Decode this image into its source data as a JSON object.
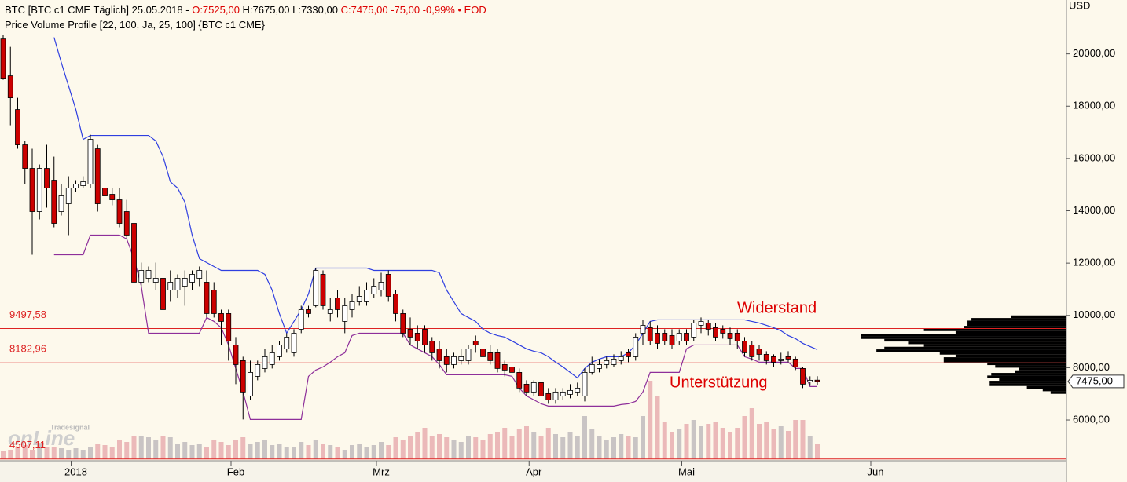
{
  "chart_data": {
    "type": "candlestick",
    "header": [
      {
        "text": "BTC [BTC c1 CME Täglich] 25.05.2018 - ",
        "color": "#000000"
      },
      {
        "text": "O:7525,00 ",
        "color": "#dd0000"
      },
      {
        "text": "H:7675,00 L:7330,00 ",
        "color": "#000000"
      },
      {
        "text": "C:7475,00 -75,00 -0,99% • EOD",
        "color": "#dd0000"
      }
    ],
    "subtitle": "Price Volume Profile [22, 100, Ja, 25, 100] {BTC c1 CME}",
    "y_unit": "USD",
    "categories": [
      null,
      null,
      null,
      null,
      null,
      null,
      null,
      null,
      null,
      null,
      "2018",
      null,
      null,
      null,
      null,
      null,
      null,
      null,
      null,
      null,
      null,
      null,
      null,
      null,
      null,
      null,
      null,
      null,
      null,
      null,
      null,
      null,
      "Feb",
      null,
      null,
      null,
      null,
      null,
      null,
      null,
      null,
      null,
      null,
      null,
      null,
      null,
      null,
      null,
      null,
      null,
      null,
      null,
      "Mrz",
      null,
      null,
      null,
      null,
      null,
      null,
      null,
      null,
      null,
      null,
      null,
      null,
      null,
      null,
      null,
      null,
      null,
      null,
      null,
      null,
      "Apr",
      null,
      null,
      null,
      null,
      null,
      null,
      null,
      null,
      null,
      null,
      null,
      null,
      null,
      null,
      null,
      null,
      null,
      null,
      null,
      null,
      "Mai",
      null,
      null,
      null,
      null,
      null,
      null,
      null,
      null,
      null,
      null,
      null,
      null,
      null,
      null,
      null,
      null,
      null,
      null,
      null,
      null,
      null,
      null,
      null,
      null,
      null,
      "Jun"
    ],
    "open": [
      20570,
      19160,
      17870,
      16520,
      15620,
      13970,
      15620,
      15170,
      13970,
      14270,
      14870,
      14960,
      15020,
      16370,
      14870,
      14630,
      14420,
      13970,
      13520,
      11270,
      11420,
      11270,
      11420,
      10970,
      10970,
      11120,
      11270,
      11420,
      11270,
      10970,
      10070,
      10070,
      8870,
      8270,
      6920,
      7670,
      7970,
      8120,
      8420,
      8720,
      8570,
      9470,
      10220,
      10370,
      11570,
      10070,
      10670,
      9770,
      10220,
      10520,
      10520,
      10820,
      10970,
      11570,
      10820,
      10070,
      9470,
      9320,
      9470,
      9020,
      8720,
      8420,
      8120,
      8270,
      8270,
      9020,
      8720,
      8570,
      8570,
      8120,
      8030,
      7820,
      7370,
      7070,
      7430,
      7010,
      6770,
      6920,
      6980,
      7070,
      6920,
      7820,
      7970,
      8120,
      8120,
      8270,
      8570,
      8420,
      9320,
      9530,
      9320,
      9320,
      9230,
      9020,
      9320,
      9170,
      9620,
      9710,
      9530,
      9470,
      9320,
      9320,
      9020,
      8870,
      8720,
      8510,
      8420,
      8270,
      8420,
      8330,
      7970,
      7460,
      7525,
      null,
      null,
      null,
      null,
      null,
      null,
      null,
      null
    ],
    "high": [
      20720,
      20270,
      18320,
      16670,
      16370,
      15770,
      16520,
      16070,
      15020,
      15320,
      15170,
      15320,
      16910,
      16520,
      15620,
      14870,
      14870,
      14420,
      14120,
      12020,
      11870,
      12020,
      11870,
      11720,
      11570,
      11720,
      11720,
      11870,
      11720,
      11270,
      10220,
      10220,
      9170,
      8420,
      8270,
      8270,
      8720,
      8870,
      9020,
      9320,
      9470,
      10370,
      10370,
      11810,
      11720,
      10670,
      10970,
      10670,
      10820,
      11120,
      11270,
      11420,
      11630,
      11720,
      10970,
      10220,
      9920,
      9620,
      9620,
      9170,
      9020,
      8720,
      8570,
      8720,
      8870,
      9230,
      8870,
      8870,
      8720,
      8270,
      8210,
      7970,
      7520,
      7520,
      7520,
      7220,
      7220,
      7220,
      7370,
      7430,
      7970,
      8420,
      8330,
      8420,
      8510,
      8630,
      8720,
      9320,
      9830,
      9770,
      9620,
      9470,
      9470,
      9470,
      9470,
      9830,
      9920,
      9830,
      9710,
      9620,
      9530,
      9470,
      9170,
      9020,
      8870,
      8630,
      8510,
      8570,
      8630,
      8420,
      8030,
      7670,
      7675,
      null,
      null,
      null,
      null,
      null,
      null,
      null,
      null
    ],
    "low": [
      19010,
      17270,
      16370,
      15020,
      12320,
      13670,
      14120,
      13370,
      13820,
      13070,
      14720,
      14870,
      14870,
      13970,
      14120,
      14210,
      13370,
      12920,
      11120,
      11120,
      11270,
      10970,
      9920,
      10520,
      10670,
      10370,
      10970,
      11120,
      9920,
      9920,
      8870,
      8270,
      7370,
      6020,
      6770,
      7520,
      7820,
      7970,
      8270,
      8570,
      8420,
      9320,
      9920,
      10310,
      10220,
      9770,
      9920,
      9320,
      9920,
      10370,
      10370,
      10670,
      10730,
      10520,
      9770,
      9170,
      8870,
      8720,
      8570,
      8270,
      7970,
      7820,
      7970,
      8120,
      8120,
      8570,
      8270,
      8120,
      7820,
      7670,
      7670,
      7070,
      6920,
      6920,
      6770,
      6620,
      6620,
      6770,
      6830,
      6920,
      6710,
      7730,
      7820,
      7970,
      8030,
      8120,
      8210,
      8270,
      8870,
      8870,
      8720,
      8870,
      8720,
      8870,
      8870,
      9020,
      9320,
      9230,
      9020,
      9110,
      8870,
      8720,
      8420,
      8270,
      8270,
      8120,
      8030,
      8120,
      8210,
      7910,
      7220,
      7310,
      7330,
      null,
      null,
      null,
      null,
      null,
      null,
      null,
      null
    ],
    "close": [
      19070,
      18320,
      16520,
      15620,
      13970,
      15620,
      14870,
      13520,
      14570,
      14870,
      15020,
      15110,
      16730,
      14270,
      14570,
      14420,
      13520,
      13070,
      11270,
      11720,
      11720,
      11420,
      10220,
      11270,
      11420,
      11420,
      11570,
      11720,
      10070,
      10070,
      9770,
      9020,
      8120,
      7070,
      7820,
      8120,
      8420,
      8570,
      8870,
      9170,
      9320,
      10220,
      10070,
      11720,
      10370,
      10220,
      10220,
      10370,
      10520,
      10730,
      10970,
      11120,
      11270,
      10730,
      10070,
      9320,
      9170,
      9020,
      8870,
      8570,
      8270,
      8120,
      8420,
      8420,
      8720,
      8870,
      8420,
      8270,
      7970,
      7910,
      7820,
      7220,
      7070,
      7430,
      6920,
      6770,
      7070,
      7070,
      7130,
      7220,
      7820,
      8120,
      8120,
      8270,
      8330,
      8420,
      8420,
      9170,
      9620,
      9020,
      8930,
      9020,
      8870,
      9320,
      9020,
      9710,
      9770,
      9470,
      9170,
      9320,
      9110,
      9020,
      8570,
      8420,
      8510,
      8270,
      8210,
      8330,
      8330,
      8030,
      7370,
      7520,
      7475,
      null,
      null,
      null,
      null,
      null,
      null,
      null,
      null
    ],
    "up_color": "#ffffff",
    "down_color": "#cc0000",
    "series": [
      {
        "color": "#2f3fe0",
        "values": [
          null,
          null,
          null,
          null,
          null,
          null,
          null,
          20630,
          19670,
          18770,
          17870,
          16730,
          16880,
          16880,
          16880,
          16880,
          16880,
          16880,
          16880,
          16880,
          16880,
          16670,
          16070,
          15110,
          14870,
          14330,
          13070,
          12170,
          12020,
          11870,
          11720,
          11720,
          11720,
          11720,
          11720,
          11720,
          11570,
          10970,
          10070,
          9320,
          9770,
          10220,
          10820,
          11810,
          11810,
          11810,
          11810,
          11810,
          11810,
          11810,
          11810,
          11720,
          11720,
          11720,
          11720,
          11720,
          11720,
          11720,
          11720,
          11720,
          11630,
          10970,
          10520,
          10070,
          9920,
          9770,
          9470,
          9320,
          9230,
          9170,
          9020,
          8870,
          8720,
          8630,
          8570,
          8420,
          8210,
          8030,
          7820,
          7610,
          7970,
          8210,
          8330,
          8420,
          8420,
          8420,
          8570,
          8870,
          9320,
          9770,
          9830,
          9830,
          9830,
          9830,
          9830,
          9830,
          9830,
          9830,
          9830,
          9830,
          9830,
          9830,
          9830,
          9770,
          9710,
          9620,
          9530,
          9410,
          9230,
          9110,
          8930,
          8810,
          8690,
          null,
          null,
          null,
          null,
          null,
          null,
          null,
          null
        ]
      },
      {
        "color": "#8e2f9a",
        "values": [
          null,
          null,
          null,
          null,
          null,
          null,
          null,
          12320,
          12320,
          12320,
          12320,
          12320,
          13070,
          13070,
          13070,
          13070,
          13070,
          12920,
          12170,
          11120,
          9320,
          9320,
          9320,
          9320,
          9320,
          9320,
          9320,
          9320,
          9920,
          9770,
          9530,
          8870,
          7970,
          7070,
          6020,
          6020,
          6020,
          6020,
          6020,
          6020,
          6020,
          6020,
          7670,
          7910,
          8030,
          8210,
          8420,
          8570,
          9230,
          9320,
          9320,
          9320,
          9320,
          9320,
          9320,
          9320,
          8870,
          8720,
          8570,
          8420,
          8120,
          7730,
          7730,
          7730,
          7730,
          7730,
          7730,
          7730,
          7730,
          7730,
          7670,
          7220,
          6920,
          6770,
          6620,
          6530,
          6530,
          6530,
          6530,
          6530,
          6530,
          6530,
          6530,
          6530,
          6530,
          6590,
          6620,
          6710,
          7070,
          7820,
          7820,
          7820,
          7820,
          7820,
          8720,
          8870,
          8870,
          8870,
          8870,
          8870,
          8870,
          8870,
          8420,
          8330,
          8210,
          8210,
          8210,
          8210,
          8210,
          7970,
          7970,
          7280,
          7280,
          null,
          null,
          null,
          null,
          null,
          null,
          null,
          null
        ]
      }
    ],
    "volume": [
      10,
      12,
      15,
      18,
      12,
      20,
      15,
      15,
      14,
      12,
      14,
      12,
      15,
      20,
      18,
      15,
      25,
      22,
      30,
      30,
      28,
      25,
      30,
      28,
      20,
      22,
      18,
      20,
      15,
      25,
      22,
      18,
      25,
      28,
      20,
      22,
      25,
      18,
      20,
      15,
      15,
      22,
      18,
      25,
      20,
      18,
      15,
      12,
      18,
      20,
      15,
      18,
      22,
      18,
      28,
      25,
      30,
      35,
      40,
      30,
      32,
      28,
      25,
      22,
      30,
      28,
      25,
      32,
      35,
      40,
      30,
      38,
      42,
      35,
      30,
      40,
      32,
      28,
      35,
      30,
      55,
      38,
      30,
      25,
      28,
      32,
      30,
      28,
      55,
      100,
      80,
      48,
      35,
      38,
      45,
      50,
      42,
      45,
      48,
      40,
      35,
      40,
      55,
      65,
      45,
      48,
      38,
      42,
      36,
      50,
      50,
      30,
      20,
      null,
      null,
      null,
      null,
      null,
      null,
      null,
      null
    ],
    "volume_up_color": "#c9c4c4",
    "volume_down_color": "#ebb9b9",
    "volume_profile": {
      "color": "#000000",
      "bins": [
        7000,
        7100,
        7200,
        7300,
        7400,
        7500,
        7600,
        7700,
        7800,
        7900,
        8000,
        8100,
        8200,
        8300,
        8400,
        8500,
        8600,
        8700,
        8800,
        8900,
        9000,
        9100,
        9200,
        9300,
        9400,
        9500,
        9600,
        9700,
        9800,
        9900,
        10000
      ],
      "counts": [
        20,
        30,
        50,
        97,
        97,
        85,
        100,
        95,
        65,
        60,
        90,
        100,
        155,
        155,
        140,
        160,
        240,
        230,
        180,
        200,
        230,
        260,
        260,
        140,
        180,
        130,
        125,
        125,
        120,
        70
      ]
    },
    "hlines": [
      {
        "value": 9497.58,
        "label": "9497,58"
      },
      {
        "value": 8182.96,
        "label": "8182,96"
      },
      {
        "value": 4507.11,
        "label": "4507,11"
      }
    ],
    "hline_color": "#dd2222",
    "annotations": [
      "Widerstand",
      "Unterstützung"
    ],
    "last_price": {
      "value": 7475,
      "label": "7475,00"
    },
    "logo": {
      "brand": "Tradesignal",
      "name": "onLine"
    },
    "ylim": [
      4500,
      22060
    ],
    "yticks": [
      {
        "value": 6000,
        "label": "6000,00"
      },
      {
        "value": 8000,
        "label": "8000,00"
      },
      {
        "value": 10000,
        "label": "10000,00"
      },
      {
        "value": 12000,
        "label": "12000,00"
      },
      {
        "value": 14000,
        "label": "14000,00"
      },
      {
        "value": 16000,
        "label": "16000,00"
      },
      {
        "value": 18000,
        "label": "18000,00"
      },
      {
        "value": 20000,
        "label": "20000,00"
      }
    ]
  }
}
